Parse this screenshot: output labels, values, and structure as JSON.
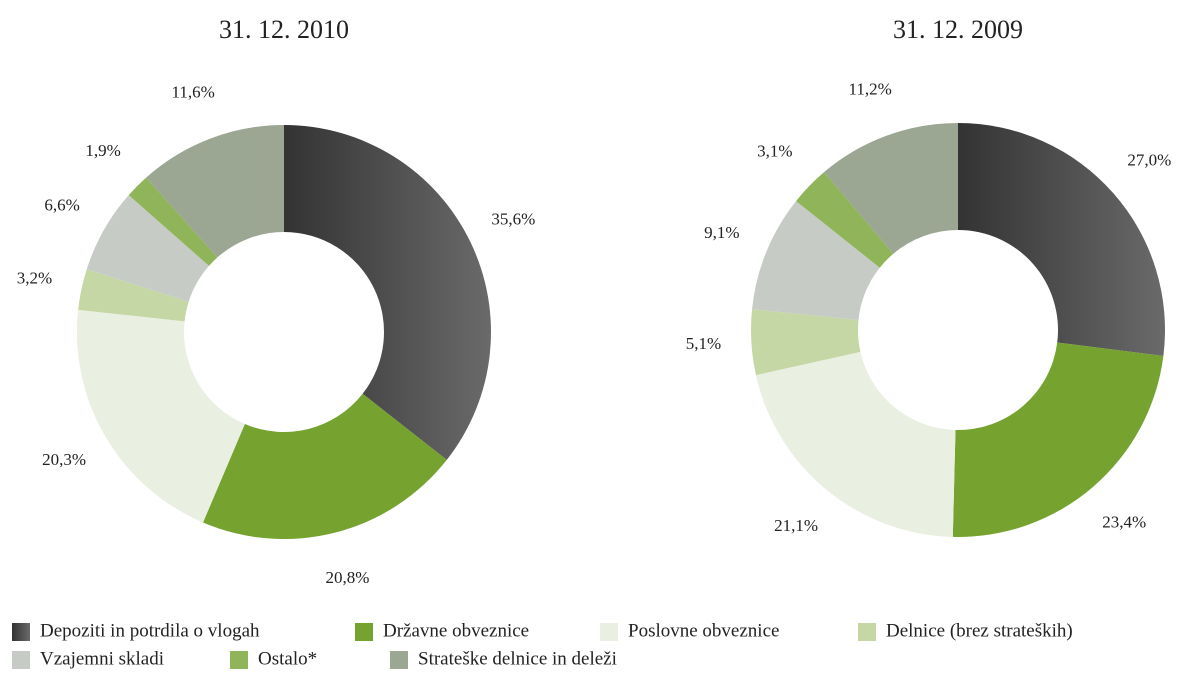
{
  "chart_data": [
    {
      "type": "donut",
      "title": "31. 12. 2010",
      "categories": [
        "Depoziti in potrdila o vlogah",
        "Državne obveznice",
        "Poslovne obveznice",
        "Delnice (brez strateških)",
        "Vzajemni skladi",
        "Ostalo*",
        "Strateške delnice in deleži"
      ],
      "values": [
        35.6,
        20.8,
        20.3,
        3.2,
        6.6,
        1.9,
        11.6
      ],
      "value_labels": [
        "35,6%",
        "20,8%",
        "20,3%",
        "3,2%",
        "6,6%",
        "1,9%",
        "11,6%"
      ],
      "colors": [
        "#4b4b4b",
        "#76a22f",
        "#e9efe1",
        "#c4d7a5",
        "#c6ccc5",
        "#8fb45a",
        "#9ba693"
      ]
    },
    {
      "type": "donut",
      "title": "31. 12. 2009",
      "categories": [
        "Depoziti in potrdila o vlogah",
        "Državne obveznice",
        "Poslovne obveznice",
        "Delnice (brez strateških)",
        "Vzajemni skladi",
        "Ostalo*",
        "Strateške delnice in deleži"
      ],
      "values": [
        27.0,
        23.4,
        21.1,
        5.1,
        9.1,
        3.1,
        11.2
      ],
      "value_labels": [
        "27,0%",
        "23,4%",
        "21,1%",
        "5,1%",
        "9,1%",
        "3,1%",
        "11,2%"
      ],
      "colors": [
        "#4b4b4b",
        "#76a22f",
        "#e9efe1",
        "#c4d7a5",
        "#c6ccc5",
        "#8fb45a",
        "#9ba693"
      ]
    }
  ]
}
